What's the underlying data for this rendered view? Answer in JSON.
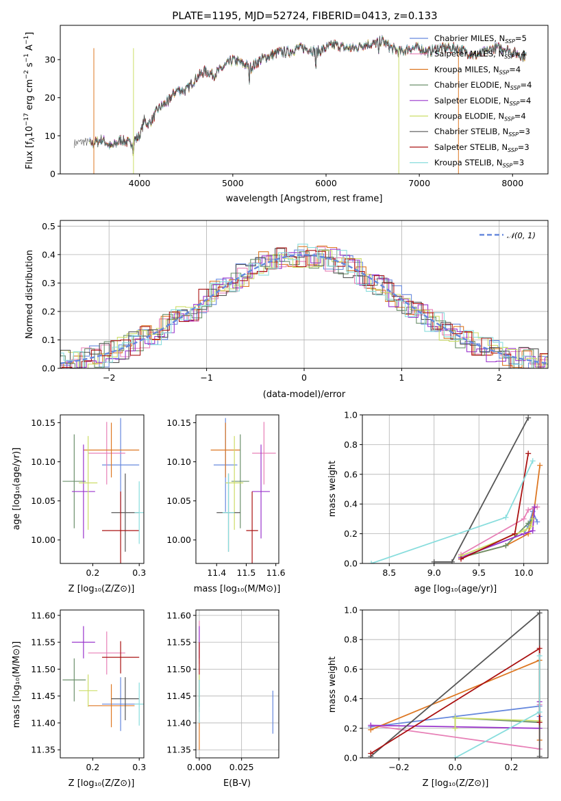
{
  "figure": {
    "title": "PLATE=1195, MJD=52724, FIBERID=0413, z=0.133"
  },
  "series": [
    {
      "name": "Chabrier MILES",
      "nssp": "5",
      "color": "#6688dd"
    },
    {
      "name": "Salpeter MILES",
      "nssp": "4",
      "color": "#e77fb6"
    },
    {
      "name": "Kroupa MILES",
      "nssp": "4",
      "color": "#dd7722"
    },
    {
      "name": "Chabrier ELODIE",
      "nssp": "4",
      "color": "#6a8f6a"
    },
    {
      "name": "Salpeter ELODIE",
      "nssp": "4",
      "color": "#9933cc"
    },
    {
      "name": "Kroupa ELODIE",
      "nssp": "4",
      "color": "#ccdd66"
    },
    {
      "name": "Chabrier STELIB",
      "nssp": "3",
      "color": "#555555"
    },
    {
      "name": "Salpeter STELIB",
      "nssp": "3",
      "color": "#aa1111"
    },
    {
      "name": "Kroupa STELIB",
      "nssp": "3",
      "color": "#88dddd"
    }
  ],
  "chart_data": [
    {
      "id": "spectrum",
      "type": "line",
      "xlabel": "wavelength [Angstrom, rest frame]",
      "ylabel": "Flux [fλ 10⁻¹⁷ erg cm⁻² s⁻¹ A⁻¹]",
      "xlim": [
        3150,
        8380
      ],
      "ylim": [
        0,
        39
      ],
      "xticks": [
        4000,
        5000,
        6000,
        7000,
        8000
      ],
      "yticks": [
        0,
        10,
        20,
        30
      ],
      "legend_placement": "top-right",
      "continuum": [
        [
          3300,
          8
        ],
        [
          3400,
          8.5
        ],
        [
          3500,
          8
        ],
        [
          3600,
          9
        ],
        [
          3700,
          7
        ],
        [
          3800,
          9
        ],
        [
          3900,
          8
        ],
        [
          4000,
          10
        ],
        [
          4050,
          14
        ],
        [
          4100,
          13
        ],
        [
          4200,
          17
        ],
        [
          4300,
          19
        ],
        [
          4400,
          22
        ],
        [
          4500,
          22
        ],
        [
          4600,
          25
        ],
        [
          4700,
          27
        ],
        [
          4800,
          26
        ],
        [
          4900,
          28
        ],
        [
          5000,
          30
        ],
        [
          5100,
          29
        ],
        [
          5200,
          28
        ],
        [
          5300,
          30
        ],
        [
          5400,
          31
        ],
        [
          5500,
          32
        ],
        [
          5600,
          32
        ],
        [
          5700,
          33
        ],
        [
          5800,
          33
        ],
        [
          5900,
          32
        ],
        [
          6000,
          33
        ],
        [
          6100,
          34
        ],
        [
          6200,
          33
        ],
        [
          6300,
          33
        ],
        [
          6400,
          34
        ],
        [
          6500,
          34
        ],
        [
          6600,
          35
        ],
        [
          6700,
          33
        ],
        [
          6800,
          32
        ],
        [
          6900,
          33
        ],
        [
          7000,
          33
        ],
        [
          7100,
          32
        ],
        [
          7200,
          33
        ],
        [
          7300,
          33
        ],
        [
          7400,
          33
        ],
        [
          7500,
          32
        ],
        [
          7600,
          31
        ],
        [
          7700,
          32
        ],
        [
          7800,
          33
        ],
        [
          7900,
          33
        ],
        [
          8000,
          32
        ],
        [
          8100,
          31
        ],
        [
          8150,
          31
        ]
      ],
      "absorption_dips": [
        [
          3934,
          4
        ],
        [
          4305,
          16
        ],
        [
          5175,
          23
        ],
        [
          5890,
          27
        ],
        [
          6563,
          30
        ]
      ]
    },
    {
      "id": "residual_hist",
      "type": "line",
      "xlabel": "(data-model)/error",
      "ylabel": "Normed distribution",
      "xlim": [
        -2.5,
        2.5
      ],
      "ylim": [
        0,
        0.52
      ],
      "xticks": [
        -2,
        -1,
        0,
        1,
        2
      ],
      "yticks": [
        0.0,
        0.1,
        0.2,
        0.3,
        0.4,
        0.5
      ],
      "reference_curve": "𝒩(0, 1)",
      "legend_placement": "top-right"
    },
    {
      "id": "age_vs_Z",
      "type": "scatter",
      "xlabel": "Z [log₁₀(Z/Z⊙)]",
      "ylabel": "age  [log₁₀(age/yr)]",
      "xlim": [
        0.13,
        0.31
      ],
      "ylim": [
        9.97,
        10.16
      ],
      "xticks": [
        0.2,
        0.3
      ],
      "yticks": [
        10.0,
        10.05,
        10.1,
        10.15
      ],
      "points": [
        {
          "x": 0.26,
          "y": 10.096,
          "xerr": 0.04,
          "yerr": 0.06
        },
        {
          "x": 0.23,
          "y": 10.111,
          "xerr": 0.04,
          "yerr": 0.04
        },
        {
          "x": 0.24,
          "y": 10.115,
          "xerr": 0.06,
          "yerr": 0.035
        },
        {
          "x": 0.16,
          "y": 10.075,
          "xerr": 0.025,
          "yerr": 0.06
        },
        {
          "x": 0.18,
          "y": 10.062,
          "xerr": 0.025,
          "yerr": 0.06
        },
        {
          "x": 0.19,
          "y": 10.073,
          "xerr": 0.02,
          "yerr": 0.06
        },
        {
          "x": 0.27,
          "y": 10.035,
          "xerr": 0.03,
          "yerr": 0.05
        },
        {
          "x": 0.26,
          "y": 10.012,
          "xerr": 0.04,
          "yerr": 0.05
        },
        {
          "x": 0.3,
          "y": 10.035,
          "xerr": 0.01,
          "yerr": 0.04
        }
      ]
    },
    {
      "id": "age_vs_mass",
      "type": "scatter",
      "xlabel": "mass [log₁₀(M/M⊙)]",
      "ylabel": "",
      "xlim": [
        11.33,
        11.61
      ],
      "ylim": [
        9.97,
        10.16
      ],
      "xticks": [
        11.4,
        11.5,
        11.6
      ],
      "yticks": [
        10.0,
        10.05,
        10.1,
        10.15
      ],
      "points": [
        {
          "x": 11.43,
          "y": 10.096,
          "xerr": 0.04,
          "yerr": 0.06
        },
        {
          "x": 11.56,
          "y": 10.111,
          "xerr": 0.04,
          "yerr": 0.04
        },
        {
          "x": 11.43,
          "y": 10.115,
          "xerr": 0.05,
          "yerr": 0.035
        },
        {
          "x": 11.48,
          "y": 10.075,
          "xerr": 0.03,
          "yerr": 0.06
        },
        {
          "x": 11.55,
          "y": 10.062,
          "xerr": 0.03,
          "yerr": 0.06
        },
        {
          "x": 11.46,
          "y": 10.073,
          "xerr": 0.03,
          "yerr": 0.06
        },
        {
          "x": 11.44,
          "y": 10.035,
          "xerr": 0.04,
          "yerr": 0.05
        },
        {
          "x": 11.52,
          "y": 10.012,
          "xerr": 0.02,
          "yerr": 0.05
        },
        {
          "x": 11.44,
          "y": 10.035,
          "xerr": 0.02,
          "yerr": 0.05
        }
      ]
    },
    {
      "id": "weight_vs_age",
      "type": "line",
      "xlabel": "age  [log₁₀(age/yr)]",
      "ylabel": "mass weight",
      "xlim": [
        8.2,
        10.27
      ],
      "ylim": [
        0,
        1.0
      ],
      "xticks": [
        8.5,
        9.0,
        9.5,
        10.0
      ],
      "yticks": [
        0.0,
        0.2,
        0.4,
        0.6,
        0.8,
        1.0
      ],
      "lines": [
        [
          [
            9.3,
            0.04
          ],
          [
            10.0,
            0.2
          ],
          [
            10.05,
            0.25
          ],
          [
            10.1,
            0.35
          ],
          [
            10.15,
            0.28
          ]
        ],
        [
          [
            9.3,
            0.06
          ],
          [
            10.0,
            0.3
          ],
          [
            10.05,
            0.36
          ],
          [
            10.15,
            0.38
          ]
        ],
        [
          [
            9.3,
            0.04
          ],
          [
            9.8,
            0.12
          ],
          [
            10.05,
            0.2
          ],
          [
            10.12,
            0.38
          ],
          [
            10.18,
            0.66
          ]
        ],
        [
          [
            9.3,
            0.04
          ],
          [
            9.8,
            0.12
          ],
          [
            10.05,
            0.27
          ],
          [
            10.1,
            0.3
          ]
        ],
        [
          [
            9.3,
            0.04
          ],
          [
            10.0,
            0.2
          ],
          [
            10.1,
            0.22
          ],
          [
            10.12,
            0.38
          ]
        ],
        [
          [
            9.3,
            0.05
          ],
          [
            10.0,
            0.22
          ],
          [
            10.08,
            0.25
          ],
          [
            10.1,
            0.3
          ]
        ],
        [
          [
            9.0,
            0.01
          ],
          [
            9.2,
            0.01
          ],
          [
            10.05,
            0.98
          ]
        ],
        [
          [
            9.3,
            0.03
          ],
          [
            9.9,
            0.2
          ],
          [
            10.05,
            0.74
          ]
        ],
        [
          [
            8.3,
            0.0
          ],
          [
            9.8,
            0.31
          ],
          [
            10.1,
            0.69
          ]
        ]
      ]
    },
    {
      "id": "mass_vs_Z",
      "type": "scatter",
      "xlabel": "Z [log₁₀(Z/Z⊙)]",
      "ylabel": "mass [log₁₀(M/M⊙)]",
      "xlim": [
        0.13,
        0.31
      ],
      "ylim": [
        11.335,
        11.61
      ],
      "xticks": [
        0.2,
        0.3
      ],
      "yticks": [
        11.35,
        11.4,
        11.45,
        11.5,
        11.55,
        11.6
      ],
      "points": [
        {
          "x": 0.26,
          "y": 11.435,
          "xerr": 0.04,
          "yerr": 0.05
        },
        {
          "x": 0.23,
          "y": 11.53,
          "xerr": 0.04,
          "yerr": 0.04
        },
        {
          "x": 0.24,
          "y": 11.432,
          "xerr": 0.05,
          "yerr": 0.04
        },
        {
          "x": 0.16,
          "y": 11.48,
          "xerr": 0.025,
          "yerr": 0.04
        },
        {
          "x": 0.18,
          "y": 11.55,
          "xerr": 0.025,
          "yerr": 0.03
        },
        {
          "x": 0.19,
          "y": 11.46,
          "xerr": 0.02,
          "yerr": 0.03
        },
        {
          "x": 0.27,
          "y": 11.445,
          "xerr": 0.03,
          "yerr": 0.04
        },
        {
          "x": 0.26,
          "y": 11.522,
          "xerr": 0.04,
          "yerr": 0.03
        },
        {
          "x": 0.3,
          "y": 11.435,
          "xerr": 0.01,
          "yerr": 0.04
        }
      ]
    },
    {
      "id": "mass_vs_ebv",
      "type": "scatter",
      "xlabel": "E(B-V)",
      "ylabel": "",
      "xlim": [
        -0.002,
        0.047
      ],
      "ylim": [
        11.335,
        11.61
      ],
      "xticks": [
        0.0,
        0.025
      ],
      "yticks": [
        11.35,
        11.4,
        11.45,
        11.5,
        11.55,
        11.6
      ],
      "points": [
        {
          "x": 0.0435,
          "y": 11.42,
          "xerr": 0,
          "yerr": 0.04
        },
        {
          "x": 0.0,
          "y": 11.55,
          "xerr": 0,
          "yerr": 0.04
        },
        {
          "x": 0.0,
          "y": 11.4,
          "xerr": 0,
          "yerr": 0.05
        },
        {
          "x": 0.0,
          "y": 11.46,
          "xerr": 0,
          "yerr": 0.03
        },
        {
          "x": 0.0,
          "y": 11.55,
          "xerr": 0,
          "yerr": 0.03
        },
        {
          "x": 0.0,
          "y": 11.46,
          "xerr": 0,
          "yerr": 0.03
        },
        {
          "x": 0.0,
          "y": 11.45,
          "xerr": 0,
          "yerr": 0.03
        },
        {
          "x": 0.0,
          "y": 11.52,
          "xerr": 0,
          "yerr": 0.03
        },
        {
          "x": 0.0,
          "y": 11.44,
          "xerr": 0,
          "yerr": 0.04
        }
      ]
    },
    {
      "id": "weight_vs_Z",
      "type": "line",
      "xlabel": "Z [log₁₀(Z/Z⊙)]",
      "ylabel": "mass weight",
      "xlim": [
        -0.33,
        0.33
      ],
      "ylim": [
        0,
        1.0
      ],
      "xticks": [
        -0.2,
        0.0,
        0.2
      ],
      "yticks": [
        0.0,
        0.2,
        0.4,
        0.6,
        0.8,
        1.0
      ],
      "lines": [
        [
          [
            -0.3,
            0.21
          ],
          [
            0.0,
            0.28
          ],
          [
            0.3,
            0.35
          ],
          [
            0.3,
            0.28
          ]
        ],
        [
          [
            -0.3,
            0.22
          ],
          [
            0.3,
            0.06
          ],
          [
            0.3,
            0.36
          ]
        ],
        [
          [
            -0.3,
            0.19
          ],
          [
            0.3,
            0.66
          ],
          [
            0.3,
            0.12
          ]
        ],
        [
          [
            0.0,
            0.2
          ],
          [
            0.0,
            0.27
          ],
          [
            0.3,
            0.24
          ]
        ],
        [
          [
            -0.3,
            0.22
          ],
          [
            0.3,
            0.2
          ],
          [
            0.3,
            0.38
          ]
        ],
        [
          [
            0.0,
            0.2
          ],
          [
            0.0,
            0.27
          ],
          [
            0.3,
            0.25
          ]
        ],
        [
          [
            -0.3,
            0.01
          ],
          [
            0.3,
            0.98
          ],
          [
            0.3,
            0.01
          ]
        ],
        [
          [
            -0.3,
            0.03
          ],
          [
            0.3,
            0.74
          ],
          [
            0.3,
            0.24
          ]
        ],
        [
          [
            0.0,
            0.0
          ],
          [
            0.3,
            0.31
          ],
          [
            0.3,
            0.69
          ]
        ]
      ]
    }
  ]
}
